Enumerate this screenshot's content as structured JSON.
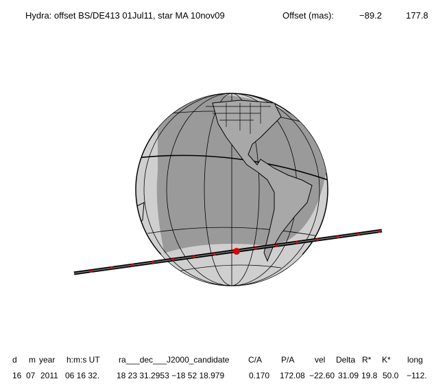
{
  "header": {
    "title": "Hydra: offset BS/DE413 01Jul11, star MA 10nov09",
    "offset_label": "Offset (mas):",
    "offset_x": "−89.2",
    "offset_y": "177.8"
  },
  "table": {
    "columns": [
      "d",
      "m",
      "year",
      "h:m:s UT",
      "ra___dec___J2000_candidate",
      "C/A",
      "P/A",
      "vel",
      "Delta",
      "R*",
      "K*",
      "long"
    ],
    "rows": [
      [
        "16",
        "07",
        "2011",
        "06 16 32.",
        "18 23 31.2953 −18 52 18.979",
        "0.170",
        "172.08",
        "−22.60",
        "31.09",
        "19.8",
        "50.0",
        "−112."
      ]
    ]
  }
}
